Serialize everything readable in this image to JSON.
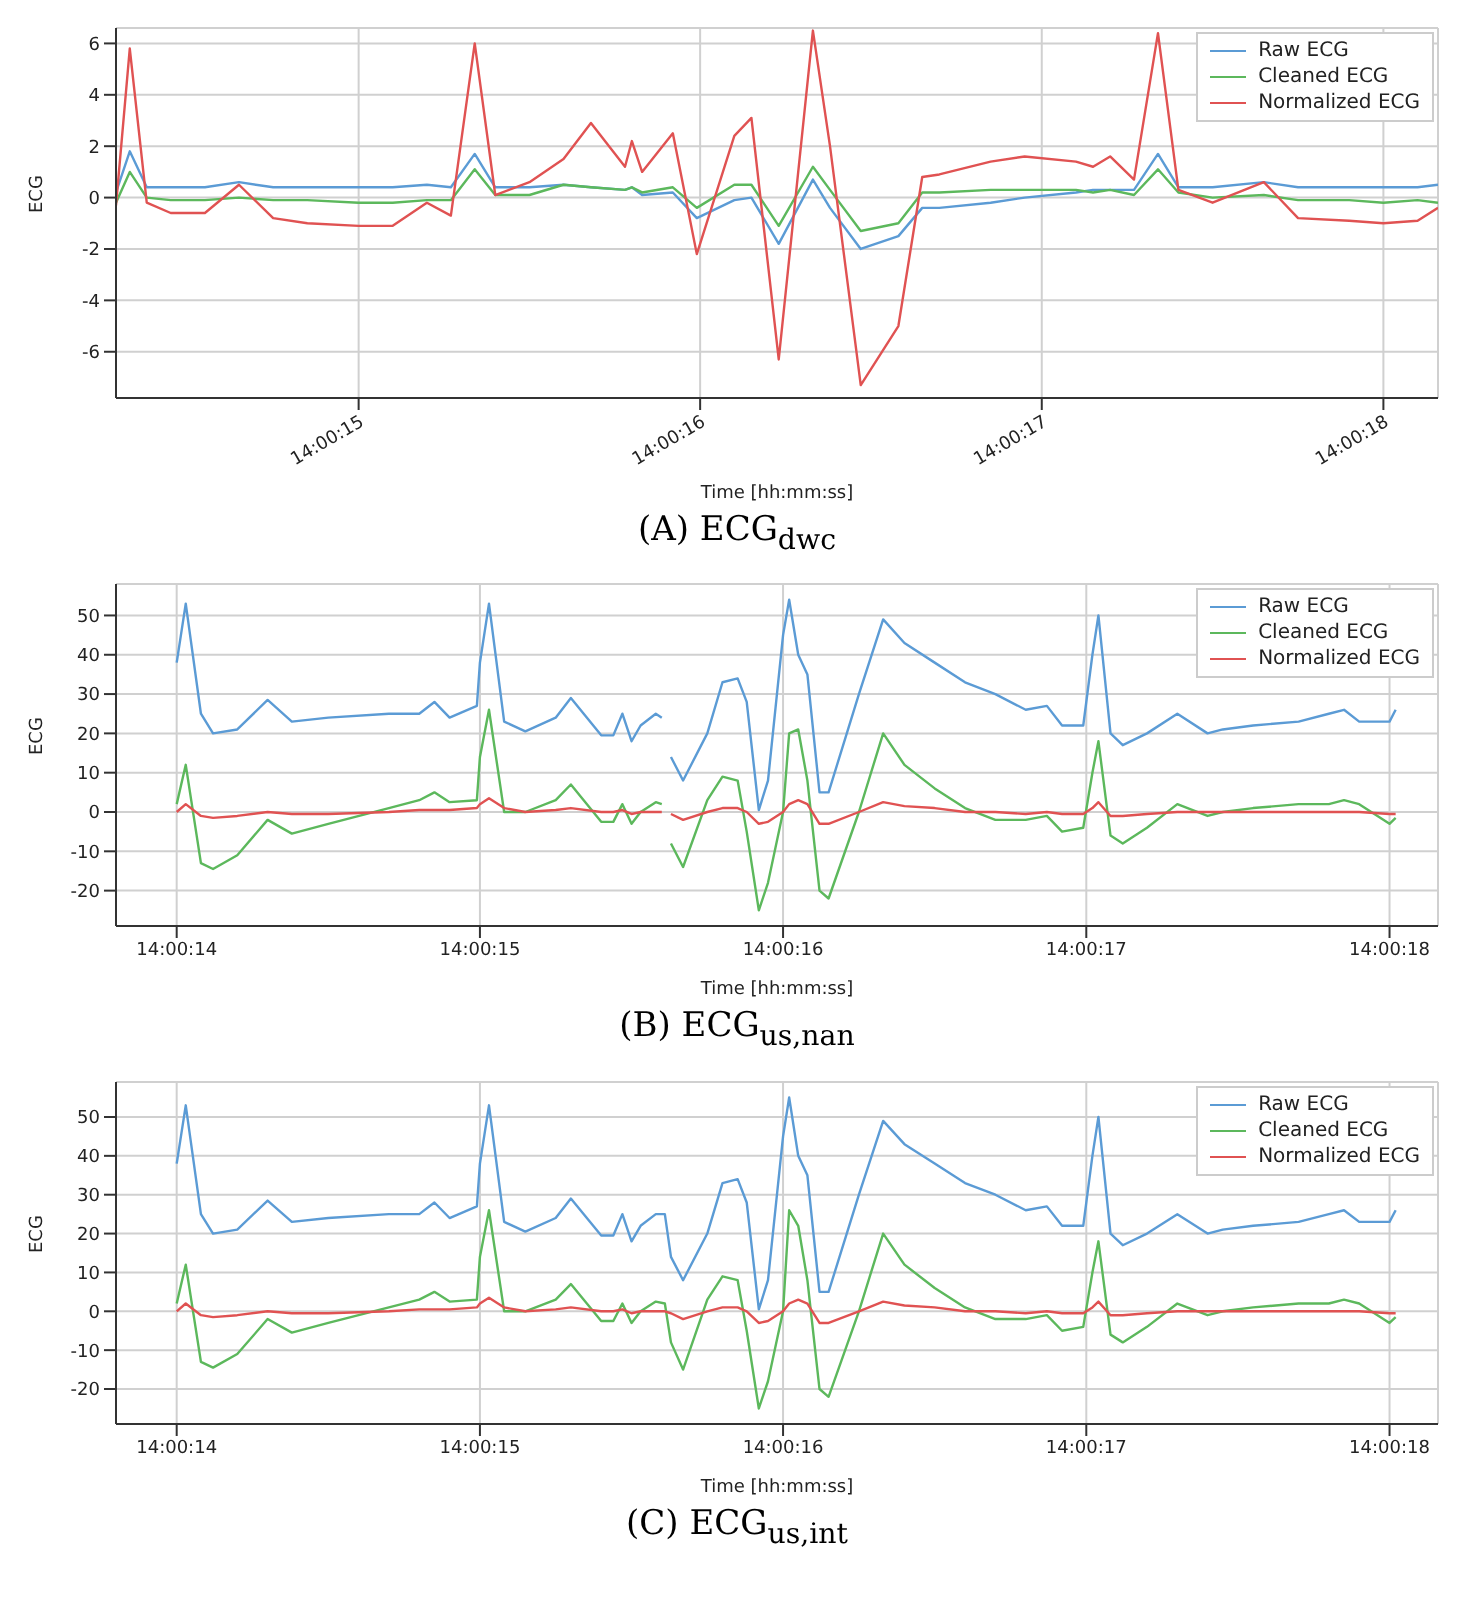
{
  "chart_data": [
    {
      "type": "line",
      "title": "(A) ECG$_{dwc}$",
      "xlabel": "Time [hh:mm:ss]",
      "ylabel": "ECG",
      "x": [
        14.0039694,
        14.0039806,
        14.0039944,
        14.0040139,
        14.0040417,
        14.0040694,
        14.0040972,
        14.004125,
        14.0041667,
        14.0041944,
        14.0042222,
        14.0042417,
        14.0042611,
        14.0042778,
        14.0043056,
        14.0043333,
        14.0043556,
        14.0043833,
        14.0043889,
        14.0043972,
        14.0044222,
        14.0044417,
        14.0044722,
        14.0044861,
        14.0045083,
        14.0045361,
        14.00455,
        14.004575,
        14.0046056,
        14.004625,
        14.0046389,
        14.0046806,
        14.0047083,
        14.00475,
        14.0047639,
        14.0047778,
        14.0047972,
        14.0048167,
        14.0048333,
        14.0048611,
        14.0049028,
        14.0049306,
        14.0049722,
        14.005,
        14.0050278,
        14.0050444
      ],
      "series": [
        {
          "name": "Raw ECG",
          "color": "#5b9bd5",
          "values": [
            0.2,
            1.8,
            0.4,
            0.4,
            0.4,
            0.6,
            0.4,
            0.4,
            0.4,
            0.4,
            0.5,
            0.4,
            1.7,
            0.4,
            0.4,
            0.5,
            0.4,
            0.3,
            0.4,
            0.1,
            0.2,
            -0.8,
            -0.1,
            0.0,
            -1.8,
            0.7,
            -0.4,
            -2.0,
            -1.5,
            -0.4,
            -0.4,
            -0.2,
            0.0,
            0.2,
            0.3,
            0.3,
            0.3,
            1.7,
            0.4,
            0.4,
            0.6,
            0.4,
            0.4,
            0.4,
            0.4,
            0.5
          ]
        },
        {
          "name": "Cleaned ECG",
          "color": "#5cb85c",
          "values": [
            -0.2,
            1.0,
            0.0,
            -0.1,
            -0.1,
            0.0,
            -0.1,
            -0.1,
            -0.2,
            -0.2,
            -0.1,
            -0.1,
            1.1,
            0.1,
            0.1,
            0.5,
            0.4,
            0.3,
            0.4,
            0.2,
            0.4,
            -0.4,
            0.5,
            0.5,
            -1.1,
            1.2,
            0.3,
            -1.3,
            -1.0,
            0.2,
            0.2,
            0.3,
            0.3,
            0.3,
            0.2,
            0.3,
            0.1,
            1.1,
            0.2,
            0.0,
            0.1,
            -0.1,
            -0.1,
            -0.2,
            -0.1,
            -0.2
          ]
        },
        {
          "name": "Normalized ECG",
          "color": "#e05252",
          "values": [
            -0.3,
            5.8,
            -0.2,
            -0.6,
            -0.6,
            0.5,
            -0.8,
            -1.0,
            -1.1,
            -1.1,
            -0.2,
            -0.7,
            6.0,
            0.1,
            0.6,
            1.5,
            2.9,
            1.2,
            2.2,
            1.0,
            2.5,
            -2.2,
            2.4,
            3.1,
            -6.3,
            6.5,
            2.0,
            -7.3,
            -5.0,
            0.8,
            0.9,
            1.4,
            1.6,
            1.4,
            1.2,
            1.6,
            0.7,
            6.4,
            0.3,
            -0.2,
            0.6,
            -0.8,
            -0.9,
            -1.0,
            -0.9,
            -0.4
          ]
        }
      ],
      "xlim": [
        14.0039694,
        14.0050444
      ],
      "xticks": [
        {
          "value": 14.0041667,
          "label": "14:00:15"
        },
        {
          "value": 14.0044444,
          "label": "14:00:16"
        },
        {
          "value": 14.0047222,
          "label": "14:00:17"
        },
        {
          "value": 14.005,
          "label": "14:00:18"
        }
      ],
      "ylim": [
        -7.8,
        6.6
      ],
      "yticks": [
        -6,
        -4,
        -2,
        0,
        2,
        4,
        6
      ],
      "grid": true,
      "legend": "top right"
    },
    {
      "type": "line",
      "title": "(B) ECG$_{us,nan}$",
      "xlabel": "Time [hh:mm:ss]",
      "ylabel": "ECG",
      "x": [
        14.0038889,
        14.0038972,
        14.0039111,
        14.0039222,
        14.0039444,
        14.0039722,
        14.0039944,
        14.0040278,
        14.0040833,
        14.0041111,
        14.004125,
        14.0041389,
        14.0041639,
        14.0041667,
        14.004175,
        14.0041889,
        14.0042083,
        14.0042361,
        14.00425,
        14.0042778,
        14.0042889,
        14.0042972,
        14.0043056,
        14.0043139,
        14.0043278,
        14.0043333,
        14.0043361,
        14.0043417,
        14.0043528,
        14.004375,
        14.0043889,
        14.0044028,
        14.0044111,
        14.0044222,
        14.0044306,
        14.0044444,
        14.00445,
        14.0044583,
        14.0044667,
        14.0044778,
        14.0044861,
        14.0045139,
        14.0045361,
        14.0045556,
        14.0045833,
        14.0046111,
        14.0046389,
        14.0046667,
        14.0046861,
        14.0047,
        14.0047194,
        14.0047278,
        14.0047333,
        14.0047444,
        14.0047556,
        14.0047778,
        14.0048056,
        14.0048333,
        14.0048472,
        14.004875,
        14.0049167,
        14.0049444,
        14.0049583,
        14.0049722,
        14.005,
        14.0050056
      ],
      "series": [
        {
          "name": "Raw ECG",
          "color": "#5b9bd5",
          "values": [
            38,
            53,
            25,
            20,
            21,
            28.5,
            23,
            24,
            25,
            25,
            28,
            24,
            27,
            38,
            53,
            23,
            20.5,
            24,
            29,
            19.5,
            19.5,
            25,
            18,
            22,
            25,
            24,
            null,
            14,
            8,
            20,
            33,
            34,
            28,
            0.5,
            8,
            45,
            54,
            40,
            35,
            5,
            5,
            30,
            49,
            43,
            38,
            33,
            30,
            26,
            27,
            22,
            22,
            40,
            50,
            20,
            17,
            20,
            25,
            20,
            21,
            22,
            23,
            25,
            26,
            23,
            23,
            26
          ]
        },
        {
          "name": "Cleaned ECG",
          "color": "#5cb85c",
          "values": [
            2,
            12,
            -13,
            -14.5,
            -11,
            -2,
            -5.5,
            -3,
            1,
            3,
            5,
            2.5,
            3,
            14,
            26,
            0,
            0,
            3,
            7,
            -2.5,
            -2.5,
            2,
            -3,
            0,
            2.5,
            2,
            null,
            -8,
            -14,
            3,
            9,
            8,
            -5,
            -25,
            -18,
            0,
            20,
            21,
            8,
            -20,
            -22,
            0,
            20,
            12,
            6,
            1,
            -2,
            -2,
            -1,
            -5,
            -4,
            10,
            18,
            -6,
            -8,
            -4,
            2,
            -1,
            0,
            1,
            2,
            2,
            3,
            2,
            -3,
            -1.5
          ]
        },
        {
          "name": "Normalized ECG",
          "color": "#e05252",
          "values": [
            0,
            2,
            -1,
            -1.5,
            -1,
            0,
            -0.5,
            -0.5,
            0,
            0.5,
            0.5,
            0.5,
            1,
            2,
            3.5,
            1,
            0,
            0.5,
            1,
            0,
            0,
            0.5,
            -0.5,
            0,
            0,
            0,
            null,
            -0.5,
            -2,
            0,
            1,
            1,
            0,
            -3,
            -2.5,
            0,
            2,
            3,
            2,
            -3,
            -3,
            0,
            2.5,
            1.5,
            1,
            0,
            0,
            -0.5,
            0,
            -0.5,
            -0.5,
            1,
            2.5,
            -1,
            -1,
            -0.5,
            0,
            0,
            0,
            0,
            0,
            0,
            0,
            0,
            -0.5,
            -0.5
          ]
        }
      ],
      "xlim": [
        14.0038333,
        14.0050444
      ],
      "xticks": [
        {
          "value": 14.0038889,
          "label": "14:00:14"
        },
        {
          "value": 14.0041667,
          "label": "14:00:15"
        },
        {
          "value": 14.0044444,
          "label": "14:00:16"
        },
        {
          "value": 14.0047222,
          "label": "14:00:17"
        },
        {
          "value": 14.005,
          "label": "14:00:18"
        }
      ],
      "ylim": [
        -29,
        58
      ],
      "yticks": [
        -20,
        -10,
        0,
        10,
        20,
        30,
        40,
        50
      ],
      "grid": true,
      "legend": "top right"
    },
    {
      "type": "line",
      "title": "(C) ECG$_{us,int}$",
      "xlabel": "Time [hh:mm:ss]",
      "ylabel": "ECG",
      "x": [
        14.0038889,
        14.0038972,
        14.0039111,
        14.0039222,
        14.0039444,
        14.0039722,
        14.0039944,
        14.0040278,
        14.0040833,
        14.0041111,
        14.004125,
        14.0041389,
        14.0041639,
        14.0041667,
        14.004175,
        14.0041889,
        14.0042083,
        14.0042361,
        14.00425,
        14.0042778,
        14.0042889,
        14.0042972,
        14.0043056,
        14.0043139,
        14.0043278,
        14.0043361,
        14.0043417,
        14.0043528,
        14.004375,
        14.0043889,
        14.0044028,
        14.0044111,
        14.0044222,
        14.0044306,
        14.0044444,
        14.00445,
        14.0044583,
        14.0044667,
        14.0044778,
        14.0044861,
        14.0045139,
        14.0045361,
        14.0045556,
        14.0045833,
        14.0046111,
        14.0046389,
        14.0046667,
        14.0046861,
        14.0047,
        14.0047194,
        14.0047278,
        14.0047333,
        14.0047444,
        14.0047556,
        14.0047778,
        14.0048056,
        14.0048333,
        14.0048472,
        14.004875,
        14.0049167,
        14.0049444,
        14.0049583,
        14.0049722,
        14.005,
        14.0050056
      ],
      "series": [
        {
          "name": "Raw ECG",
          "color": "#5b9bd5",
          "values": [
            38,
            53,
            25,
            20,
            21,
            28.5,
            23,
            24,
            25,
            25,
            28,
            24,
            27,
            38,
            53,
            23,
            20.5,
            24,
            29,
            19.5,
            19.5,
            25,
            18,
            22,
            25,
            25,
            14,
            8,
            20,
            33,
            34,
            28,
            0.5,
            8,
            45,
            55,
            40,
            35,
            5,
            5,
            30,
            49,
            43,
            38,
            33,
            30,
            26,
            27,
            22,
            22,
            40,
            50,
            20,
            17,
            20,
            25,
            20,
            21,
            22,
            23,
            25,
            26,
            23,
            23,
            26
          ]
        },
        {
          "name": "Cleaned ECG",
          "color": "#5cb85c",
          "values": [
            2,
            12,
            -13,
            -14.5,
            -11,
            -2,
            -5.5,
            -3,
            1,
            3,
            5,
            2.5,
            3,
            14,
            26,
            0,
            0,
            3,
            7,
            -2.5,
            -2.5,
            2,
            -3,
            0,
            2.5,
            2,
            -8,
            -15,
            3,
            9,
            8,
            -5,
            -25,
            -18,
            0,
            26,
            22,
            8,
            -20,
            -22,
            0,
            20,
            12,
            6,
            1,
            -2,
            -2,
            -1,
            -5,
            -4,
            10,
            18,
            -6,
            -8,
            -4,
            2,
            -1,
            0,
            1,
            2,
            2,
            3,
            2,
            -3,
            -1.5
          ]
        },
        {
          "name": "Normalized ECG",
          "color": "#e05252",
          "values": [
            0,
            2,
            -1,
            -1.5,
            -1,
            0,
            -0.5,
            -0.5,
            0,
            0.5,
            0.5,
            0.5,
            1,
            2,
            3.5,
            1,
            0,
            0.5,
            1,
            0,
            0,
            0.5,
            -0.5,
            0,
            0,
            0,
            -0.5,
            -2,
            0,
            1,
            1,
            0,
            -3,
            -2.5,
            0,
            2,
            3,
            2,
            -3,
            -3,
            0,
            2.5,
            1.5,
            1,
            0,
            0,
            -0.5,
            0,
            -0.5,
            -0.5,
            1,
            2.5,
            -1,
            -1,
            -0.5,
            0,
            0,
            0,
            0,
            0,
            0,
            0,
            0,
            -0.5,
            -0.5
          ]
        }
      ],
      "xlim": [
        14.0038333,
        14.0050444
      ],
      "xticks": [
        {
          "value": 14.0038889,
          "label": "14:00:14"
        },
        {
          "value": 14.0041667,
          "label": "14:00:15"
        },
        {
          "value": 14.0044444,
          "label": "14:00:16"
        },
        {
          "value": 14.0047222,
          "label": "14:00:17"
        },
        {
          "value": 14.005,
          "label": "14:00:18"
        }
      ],
      "ylim": [
        -29,
        59
      ],
      "yticks": [
        -20,
        -10,
        0,
        10,
        20,
        30,
        40,
        50
      ],
      "grid": true,
      "legend": "top right"
    }
  ]
}
